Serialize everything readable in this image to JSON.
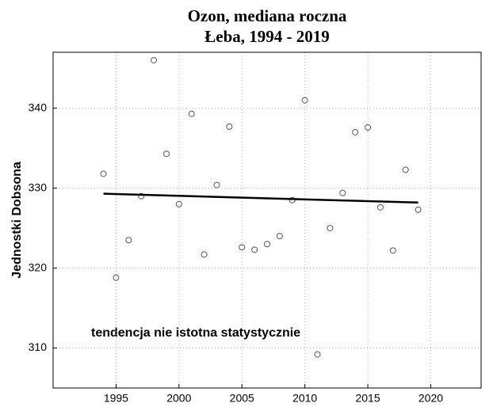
{
  "chart_data": {
    "type": "scatter",
    "title": [
      "Ozon, mediana roczna",
      "Łeba, 1994 - 2019"
    ],
    "ylabel": "Jednostki Dobsona",
    "annotation": "tendencja nie istotna statystycznie",
    "x": [
      1994,
      1995,
      1996,
      1997,
      1998,
      1999,
      2000,
      2001,
      2002,
      2003,
      2004,
      2005,
      2006,
      2007,
      2008,
      2009,
      2010,
      2011,
      2012,
      2013,
      2014,
      2015,
      2016,
      2017,
      2018,
      2019
    ],
    "values": [
      331.8,
      318.8,
      323.5,
      329,
      346,
      334.3,
      328,
      339.3,
      321.7,
      330.4,
      337.7,
      322.6,
      322.3,
      323,
      324,
      328.5,
      341,
      309.2,
      325,
      329.4,
      337,
      337.6,
      327.6,
      322.2,
      332.3,
      327.3
    ],
    "color": "#555555",
    "trend": {
      "x": [
        1994,
        2019
      ],
      "values": [
        329.3,
        328.2
      ],
      "color": "#000000"
    },
    "xlim": [
      1990,
      2024
    ],
    "ylim": [
      305,
      347
    ],
    "xticks": [
      1995,
      2000,
      2005,
      2010,
      2015,
      2020
    ],
    "yticks": [
      310,
      320,
      330,
      340
    ],
    "grid": true
  }
}
